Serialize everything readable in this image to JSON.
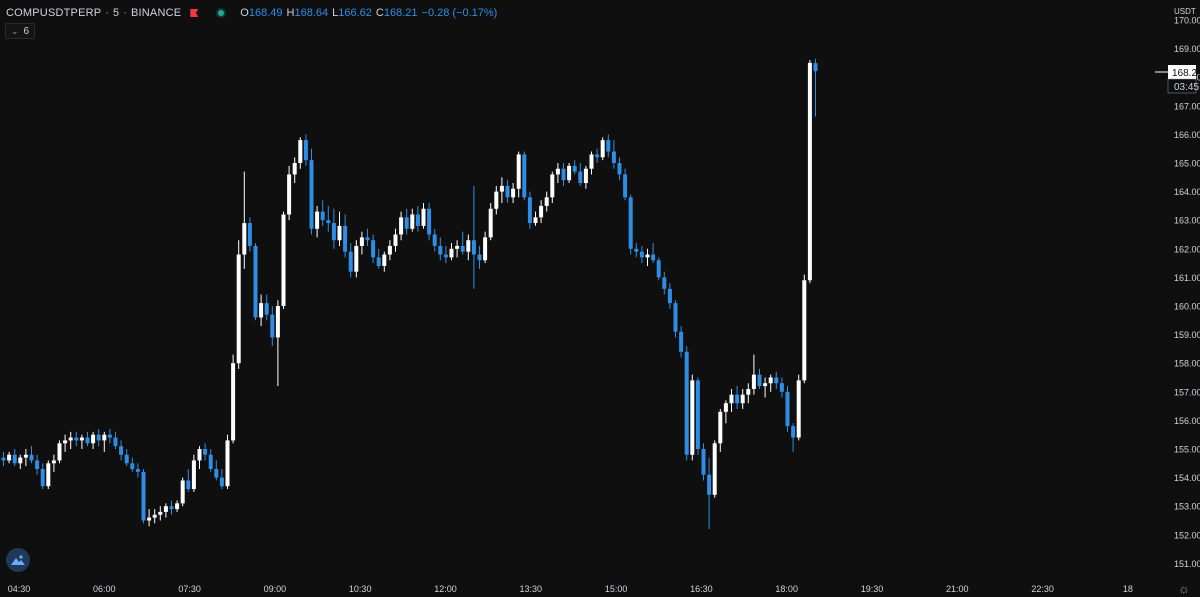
{
  "legend": {
    "symbol": "COMPUSDTPERP",
    "interval": "5",
    "exchange": "BINANCE",
    "o_label": "O",
    "o": "168.49",
    "h_label": "H",
    "h": "168.64",
    "l_label": "L",
    "l": "166.62",
    "c_label": "C",
    "c": "168.21",
    "change": "−0.28 (−0.17%)"
  },
  "indicator_toggle": {
    "count": "6",
    "icon": "chevron-down-icon"
  },
  "price_axis": {
    "currency": "USDT"
  },
  "last_price": {
    "value": "168.21",
    "countdown": "03:45"
  },
  "colors": {
    "up": "#ffffff",
    "down": "#2e8ee6",
    "background": "#0f0f0f",
    "axis_text": "#d1d4dc"
  },
  "chart_data": {
    "type": "candlestick",
    "symbol": "COMPUSDTPERP",
    "timeframe": "5",
    "ylim": [
      150.7,
      170.3
    ],
    "yticks": [
      151,
      152,
      153,
      154,
      155,
      156,
      157,
      158,
      159,
      160,
      161,
      162,
      163,
      164,
      165,
      166,
      167,
      168,
      169,
      170
    ],
    "ytick_labels": [
      "151.00",
      "152.00",
      "153.00",
      "154.00",
      "155.00",
      "156.00",
      "157.00",
      "158.00",
      "159.00",
      "160.00",
      "161.00",
      "162.00",
      "163.00",
      "164.00",
      "165.00",
      "166.00",
      "167.00",
      "168.00",
      "169.00",
      "170.00"
    ],
    "xticks": [
      "04:30",
      "06:00",
      "07:30",
      "09:00",
      "10:30",
      "12:00",
      "13:30",
      "15:00",
      "16:30",
      "18:00",
      "19:30",
      "21:00",
      "22:30",
      "18"
    ],
    "candles": [
      [
        154.7,
        154.9,
        154.4,
        154.6
      ],
      [
        154.6,
        154.9,
        154.5,
        154.8
      ],
      [
        154.8,
        155.0,
        154.4,
        154.5
      ],
      [
        154.5,
        154.8,
        154.3,
        154.7
      ],
      [
        154.7,
        155.0,
        154.4,
        154.8
      ],
      [
        154.8,
        155.1,
        154.5,
        154.6
      ],
      [
        154.6,
        154.8,
        154.1,
        154.3
      ],
      [
        154.3,
        154.5,
        153.6,
        153.7
      ],
      [
        153.7,
        154.6,
        153.6,
        154.5
      ],
      [
        154.5,
        154.8,
        154.2,
        154.6
      ],
      [
        154.6,
        155.3,
        154.5,
        155.2
      ],
      [
        155.2,
        155.5,
        154.9,
        155.3
      ],
      [
        155.3,
        155.6,
        155.0,
        155.4
      ],
      [
        155.4,
        155.6,
        155.1,
        155.3
      ],
      [
        155.3,
        155.5,
        155.0,
        155.4
      ],
      [
        155.4,
        155.6,
        155.1,
        155.2
      ],
      [
        155.2,
        155.6,
        155.0,
        155.5
      ],
      [
        155.5,
        155.7,
        155.1,
        155.3
      ],
      [
        155.3,
        155.6,
        154.9,
        155.5
      ],
      [
        155.5,
        155.7,
        155.2,
        155.4
      ],
      [
        155.4,
        155.6,
        155.0,
        155.1
      ],
      [
        155.1,
        155.3,
        154.6,
        154.8
      ],
      [
        154.8,
        155.0,
        154.4,
        154.5
      ],
      [
        154.5,
        154.7,
        154.2,
        154.3
      ],
      [
        154.3,
        154.5,
        154.0,
        154.2
      ],
      [
        154.2,
        154.3,
        152.4,
        152.5
      ],
      [
        152.5,
        152.9,
        152.3,
        152.6
      ],
      [
        152.6,
        152.9,
        152.4,
        152.7
      ],
      [
        152.7,
        153.0,
        152.5,
        152.8
      ],
      [
        152.8,
        153.1,
        152.6,
        153.0
      ],
      [
        153.0,
        153.2,
        152.7,
        152.9
      ],
      [
        152.9,
        153.2,
        152.8,
        153.1
      ],
      [
        153.1,
        154.0,
        153.0,
        153.9
      ],
      [
        153.9,
        154.3,
        153.5,
        153.6
      ],
      [
        153.6,
        154.8,
        153.5,
        154.6
      ],
      [
        154.6,
        155.1,
        154.3,
        155.0
      ],
      [
        155.0,
        155.2,
        154.6,
        154.8
      ],
      [
        154.8,
        155.0,
        154.2,
        154.3
      ],
      [
        154.3,
        154.6,
        153.9,
        154.0
      ],
      [
        154.0,
        154.3,
        153.6,
        153.7
      ],
      [
        153.7,
        155.5,
        153.6,
        155.3
      ],
      [
        155.3,
        158.3,
        155.2,
        158.0
      ],
      [
        158.0,
        162.3,
        157.8,
        161.8
      ],
      [
        161.8,
        164.7,
        161.3,
        162.9
      ],
      [
        162.9,
        163.1,
        161.9,
        162.1
      ],
      [
        162.1,
        162.2,
        159.5,
        159.6
      ],
      [
        159.6,
        160.4,
        159.3,
        160.1
      ],
      [
        160.1,
        160.4,
        159.5,
        159.7
      ],
      [
        159.7,
        160.0,
        158.6,
        158.9
      ],
      [
        158.9,
        160.2,
        157.2,
        160.0
      ],
      [
        160.0,
        163.3,
        159.9,
        163.2
      ],
      [
        163.2,
        164.9,
        163.0,
        164.6
      ],
      [
        164.6,
        165.2,
        164.3,
        165.0
      ],
      [
        165.0,
        165.9,
        164.8,
        165.8
      ],
      [
        165.8,
        166.0,
        164.9,
        165.1
      ],
      [
        165.1,
        165.5,
        162.5,
        162.7
      ],
      [
        162.7,
        163.5,
        162.4,
        163.3
      ],
      [
        163.3,
        163.7,
        162.8,
        163.0
      ],
      [
        163.0,
        163.5,
        162.6,
        162.9
      ],
      [
        162.9,
        163.4,
        162.0,
        162.3
      ],
      [
        162.3,
        163.3,
        162.1,
        162.8
      ],
      [
        162.8,
        163.2,
        161.7,
        161.9
      ],
      [
        161.9,
        162.2,
        161.0,
        161.2
      ],
      [
        161.2,
        162.3,
        161.0,
        162.1
      ],
      [
        162.1,
        162.6,
        161.8,
        162.4
      ],
      [
        162.4,
        162.7,
        162.1,
        162.3
      ],
      [
        162.3,
        162.5,
        161.5,
        161.7
      ],
      [
        161.7,
        162.0,
        161.3,
        161.4
      ],
      [
        161.4,
        161.9,
        161.2,
        161.8
      ],
      [
        161.8,
        162.3,
        161.6,
        162.1
      ],
      [
        162.1,
        162.7,
        161.9,
        162.5
      ],
      [
        162.5,
        163.3,
        162.3,
        163.1
      ],
      [
        163.1,
        163.4,
        162.5,
        162.7
      ],
      [
        162.7,
        163.4,
        162.6,
        163.2
      ],
      [
        163.2,
        163.5,
        162.6,
        162.8
      ],
      [
        162.8,
        163.6,
        162.7,
        163.4
      ],
      [
        163.4,
        163.6,
        162.3,
        162.5
      ],
      [
        162.5,
        162.7,
        161.9,
        162.1
      ],
      [
        162.1,
        162.4,
        161.6,
        161.8
      ],
      [
        161.8,
        162.1,
        161.5,
        161.7
      ],
      [
        161.7,
        162.2,
        161.6,
        162.0
      ],
      [
        162.0,
        162.3,
        161.7,
        162.1
      ],
      [
        162.1,
        162.6,
        161.8,
        161.9
      ],
      [
        161.9,
        162.5,
        161.6,
        162.3
      ],
      [
        162.3,
        164.2,
        160.6,
        161.8
      ],
      [
        161.8,
        162.1,
        161.3,
        161.6
      ],
      [
        161.6,
        162.6,
        161.5,
        162.4
      ],
      [
        162.4,
        163.6,
        162.3,
        163.4
      ],
      [
        163.4,
        164.2,
        163.2,
        164.0
      ],
      [
        164.0,
        164.5,
        163.6,
        164.2
      ],
      [
        164.2,
        164.4,
        163.6,
        163.8
      ],
      [
        163.8,
        164.3,
        163.6,
        164.1
      ],
      [
        164.1,
        165.4,
        163.8,
        165.3
      ],
      [
        165.3,
        165.4,
        163.7,
        163.8
      ],
      [
        163.8,
        164.0,
        162.7,
        162.9
      ],
      [
        162.9,
        163.3,
        162.8,
        163.1
      ],
      [
        163.1,
        163.7,
        162.9,
        163.5
      ],
      [
        163.5,
        164.0,
        163.3,
        163.8
      ],
      [
        163.8,
        164.7,
        163.6,
        164.6
      ],
      [
        164.6,
        165.0,
        164.3,
        164.8
      ],
      [
        164.8,
        165.0,
        164.2,
        164.4
      ],
      [
        164.4,
        165.0,
        164.3,
        164.9
      ],
      [
        164.9,
        165.1,
        164.6,
        164.7
      ],
      [
        164.7,
        165.0,
        164.2,
        164.3
      ],
      [
        164.3,
        164.9,
        164.1,
        164.8
      ],
      [
        164.8,
        165.4,
        164.6,
        165.3
      ],
      [
        165.3,
        165.5,
        165.0,
        165.2
      ],
      [
        165.2,
        165.9,
        165.1,
        165.8
      ],
      [
        165.8,
        166.0,
        165.2,
        165.4
      ],
      [
        165.4,
        165.8,
        164.8,
        165.0
      ],
      [
        165.0,
        165.2,
        164.4,
        164.6
      ],
      [
        164.6,
        164.8,
        163.7,
        163.8
      ],
      [
        163.8,
        163.9,
        161.8,
        162.0
      ],
      [
        162.0,
        162.2,
        161.7,
        161.9
      ],
      [
        161.9,
        162.1,
        161.5,
        161.7
      ],
      [
        161.7,
        162.0,
        161.4,
        161.8
      ],
      [
        161.8,
        162.2,
        161.5,
        161.6
      ],
      [
        161.6,
        161.7,
        160.9,
        161.0
      ],
      [
        161.0,
        161.2,
        160.4,
        160.6
      ],
      [
        160.6,
        160.8,
        159.9,
        160.1
      ],
      [
        160.1,
        160.2,
        158.9,
        159.1
      ],
      [
        159.1,
        159.3,
        158.2,
        158.4
      ],
      [
        158.4,
        158.6,
        154.6,
        154.8
      ],
      [
        154.8,
        157.6,
        154.6,
        157.4
      ],
      [
        157.4,
        157.5,
        154.8,
        155.0
      ],
      [
        155.0,
        155.2,
        153.9,
        154.1
      ],
      [
        154.1,
        154.7,
        152.2,
        153.4
      ],
      [
        153.4,
        155.3,
        153.3,
        155.2
      ],
      [
        155.2,
        156.4,
        154.9,
        156.3
      ],
      [
        156.3,
        156.7,
        155.9,
        156.6
      ],
      [
        156.6,
        157.1,
        156.3,
        156.9
      ],
      [
        156.9,
        157.2,
        156.4,
        156.6
      ],
      [
        156.6,
        157.1,
        156.4,
        156.9
      ],
      [
        156.9,
        157.3,
        156.6,
        157.1
      ],
      [
        157.1,
        158.3,
        156.9,
        157.6
      ],
      [
        157.6,
        157.8,
        157.1,
        157.2
      ],
      [
        157.2,
        157.5,
        156.8,
        157.3
      ],
      [
        157.3,
        157.6,
        157.0,
        157.5
      ],
      [
        157.5,
        157.7,
        157.1,
        157.3
      ],
      [
        157.3,
        157.5,
        156.8,
        157.0
      ],
      [
        157.0,
        157.2,
        155.6,
        155.8
      ],
      [
        155.8,
        155.9,
        154.9,
        155.4
      ],
      [
        155.4,
        157.6,
        155.3,
        157.4
      ],
      [
        157.4,
        161.1,
        157.3,
        160.9
      ],
      [
        160.9,
        168.6,
        160.8,
        168.5
      ],
      [
        168.49,
        168.64,
        166.62,
        168.21
      ]
    ]
  }
}
